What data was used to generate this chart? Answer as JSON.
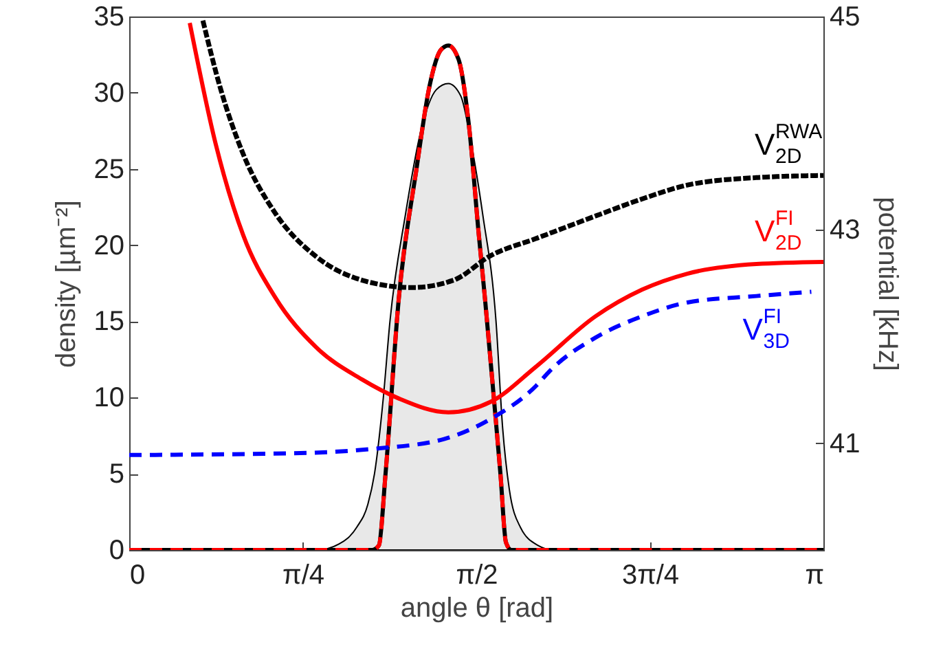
{
  "chart_data": {
    "type": "line",
    "xlabel": "angle θ [rad]",
    "ylabel": "density [µm⁻²]",
    "y2label": "potential [kHz]",
    "xlim": [
      0,
      3.14159
    ],
    "xticks": [
      {
        "value": 0,
        "label": "0"
      },
      {
        "value": 0.7854,
        "label": "π/4"
      },
      {
        "value": 1.5708,
        "label": "π/2"
      },
      {
        "value": 2.3562,
        "label": "3π/4"
      },
      {
        "value": 3.14159,
        "label": "π"
      }
    ],
    "ylim": [
      0,
      35
    ],
    "yticks": [
      0,
      5,
      10,
      15,
      20,
      25,
      30,
      35
    ],
    "y2lim": [
      40,
      45
    ],
    "y2ticks": [
      41,
      43,
      45
    ],
    "grid": false,
    "series": [
      {
        "type": "area",
        "color": "#e8e8e8",
        "x": [
          0,
          0.85,
          0.95,
          1.03,
          1.08,
          1.11,
          1.15,
          1.18,
          1.25,
          1.32,
          1.39,
          1.444,
          1.5,
          1.55,
          1.6,
          1.66,
          1.69,
          1.72,
          1.77,
          1.85,
          1.92,
          3.14159
        ],
        "values": [
          0,
          0,
          0.4,
          1.5,
          3,
          5,
          10,
          15,
          22,
          27.5,
          30.2,
          30.6,
          29.8,
          26.5,
          22,
          15,
          8,
          4,
          1.5,
          0.3,
          0,
          0
        ]
      },
      {
        "color": "#000000",
        "line_style": "solid",
        "x": [
          0,
          1.1,
          1.13,
          1.16,
          1.22,
          1.3,
          1.36,
          1.41,
          1.444,
          1.49,
          1.54,
          1.58,
          1.61,
          1.65,
          1.68,
          1.705,
          1.73,
          3.14159
        ],
        "values": [
          0,
          0,
          0.3,
          5,
          16.5,
          25,
          30.5,
          32.8,
          33.1,
          32.2,
          27.5,
          21,
          16.5,
          10,
          5,
          0.5,
          0,
          0
        ]
      },
      {
        "color": "#ff0000",
        "line_style": "dashed",
        "x": [
          0,
          1.1,
          1.13,
          1.16,
          1.22,
          1.3,
          1.36,
          1.41,
          1.444,
          1.49,
          1.54,
          1.58,
          1.61,
          1.65,
          1.68,
          1.705,
          1.73,
          3.14159
        ],
        "values": [
          0,
          0,
          0.3,
          5,
          16.5,
          25,
          30.5,
          32.8,
          33.1,
          32.2,
          27.5,
          21,
          16.5,
          10,
          5,
          0.5,
          0,
          0
        ]
      },
      {
        "axis": "y2",
        "name": "V$^{RWA}$$_{2D}$",
        "color": "#000000",
        "line_style": "dotted",
        "x": [
          0.336,
          0.411,
          0.516,
          0.66,
          0.846,
          1.052,
          1.282,
          1.469,
          1.637,
          1.842,
          2.11,
          2.321,
          2.526,
          2.838,
          3.14159
        ],
        "values": [
          44.94,
          44.34,
          43.71,
          43.16,
          42.75,
          42.53,
          42.46,
          42.53,
          42.76,
          42.92,
          43.13,
          43.29,
          43.42,
          43.49,
          43.51
        ]
      },
      {
        "axis": "y2",
        "name": "V$^{FI}$$_{2D}$",
        "color": "#ff0000",
        "line_style": "solid",
        "x": [
          0.274,
          0.392,
          0.516,
          0.66,
          0.846,
          1.052,
          1.22,
          1.444,
          1.637,
          1.842,
          2.11,
          2.321,
          2.526,
          2.838,
          3.14159
        ],
        "values": [
          44.94,
          43.8,
          42.95,
          42.37,
          41.9,
          41.6,
          41.42,
          41.29,
          41.39,
          41.72,
          42.19,
          42.44,
          42.59,
          42.68,
          42.7
        ]
      },
      {
        "axis": "y2",
        "name": "V$^{FI}$$_{3D}$",
        "color": "#0000ff",
        "line_style": "dashed",
        "x": [
          0,
          0.803,
          1.114,
          1.425,
          1.637,
          1.842,
          1.904,
          2.11,
          2.321,
          2.526,
          2.838,
          3.087
        ],
        "values": [
          40.89,
          40.91,
          40.95,
          41.04,
          41.23,
          41.54,
          41.68,
          41.99,
          42.19,
          42.32,
          42.38,
          42.42
        ]
      }
    ]
  }
}
